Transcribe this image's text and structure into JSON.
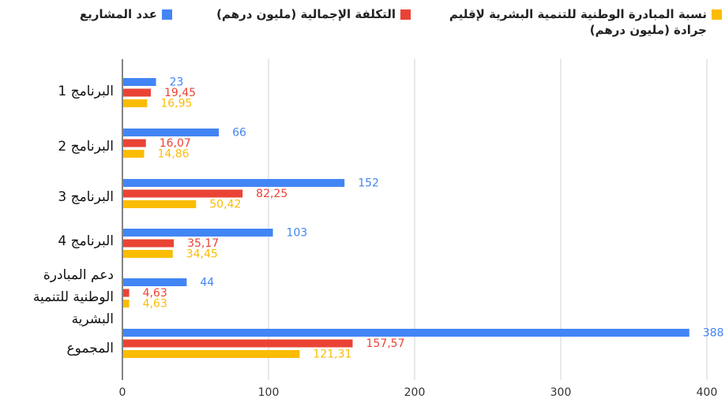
{
  "legend": [
    {
      "label": "نسبة المبادرة الوطنية للتنمية البشرية لإقليم جرادة  (مليون درهم)",
      "color": "#FBBC04"
    },
    {
      "label": "التكلفة الإجمالية (مليون درهم)",
      "color": "#EA4335"
    },
    {
      "label": "عدد المشاريع",
      "color": "#4285F4"
    }
  ],
  "chart_data": {
    "type": "bar",
    "orientation": "horizontal",
    "categories": [
      "البرنامج 1",
      "البرنامج  2",
      "البرنامج 3",
      "البرنامج 4",
      "دعم       المبادرة الوطنية  للتنمية البشرية",
      "المجموع"
    ],
    "series": [
      {
        "name": "عدد المشاريع",
        "color": "#4285F4",
        "values": [
          23,
          66,
          152,
          103,
          44,
          388
        ],
        "labels": [
          "23",
          "66",
          "152",
          "103",
          "44",
          "388"
        ]
      },
      {
        "name": "التكلفة الإجمالية (مليون درهم)",
        "color": "#EA4335",
        "values": [
          19.45,
          16.07,
          82.25,
          35.17,
          4.63,
          157.57
        ],
        "labels": [
          "19,45",
          "16,07",
          "82,25",
          "35,17",
          "4,63",
          "157,57"
        ]
      },
      {
        "name": "نسبة المبادرة الوطنية للتنمية البشرية لإقليم جرادة  (مليون درهم)",
        "color": "#FBBC04",
        "values": [
          16.95,
          14.86,
          50.42,
          34.45,
          4.63,
          121.31
        ],
        "labels": [
          "16,95",
          "14,86",
          "50,42",
          "34,45",
          "4,63",
          "121,31"
        ]
      }
    ],
    "xticks": [
      "0",
      "100",
      "200",
      "300",
      "400"
    ],
    "xlim": [
      0,
      400
    ],
    "grid": true,
    "legend_position": "top"
  }
}
